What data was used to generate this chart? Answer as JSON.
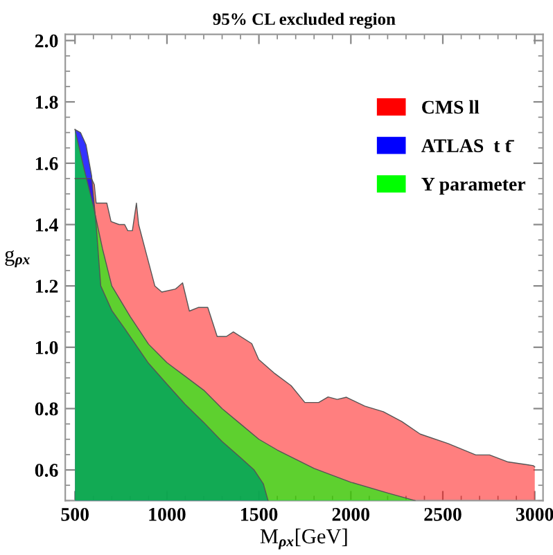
{
  "chart_data": {
    "type": "area",
    "title": "95% CL excluded region",
    "xlabel": "M$_{ρx}$[GeV]",
    "ylabel": "g$_{ρx}$",
    "xlim": [
      447,
      3045
    ],
    "ylim": [
      0.5,
      2.02
    ],
    "xticks": [
      500,
      1000,
      1500,
      2000,
      2500,
      3000
    ],
    "yticks": [
      {
        "value": 0.6,
        "label": "0.6"
      },
      {
        "value": 0.8,
        "label": "0.8"
      },
      {
        "value": 1,
        "label": "1.0"
      },
      {
        "value": 1.2,
        "label": "1.2"
      },
      {
        "value": 1.4,
        "label": "1.4"
      },
      {
        "value": 1.6,
        "label": "1.6"
      },
      {
        "value": 1.8,
        "label": "1.8"
      },
      {
        "value": 2,
        "label": "2.0"
      }
    ],
    "legend": "top right",
    "grid": false,
    "series": [
      {
        "name": "CMS ll",
        "color": "#ff0000",
        "x": [
          500,
          570,
          590,
          605,
          615,
          640,
          673,
          696,
          740,
          770,
          787,
          812,
          834,
          846,
          890,
          934,
          972,
          1047,
          1085,
          1122,
          1172,
          1222,
          1273,
          1323,
          1361,
          1461,
          1499,
          1587,
          1675,
          1750,
          1825,
          1876,
          1926,
          1976,
          2076,
          2176,
          2277,
          2377,
          2528,
          2679,
          2754,
          2855,
          2993,
          3000
        ],
        "values": [
          1.55,
          1.55,
          1.55,
          1.53,
          1.47,
          1.47,
          1.47,
          1.41,
          1.4,
          1.4,
          1.38,
          1.38,
          1.47,
          1.4,
          1.3,
          1.2,
          1.18,
          1.19,
          1.21,
          1.118,
          1.13,
          1.13,
          1.035,
          1.035,
          1.05,
          1.012,
          0.96,
          0.914,
          0.875,
          0.82,
          0.82,
          0.838,
          0.83,
          0.837,
          0.808,
          0.79,
          0.758,
          0.717,
          0.686,
          0.649,
          0.649,
          0.626,
          0.614,
          0.61
        ]
      },
      {
        "name": "ATLAS  t t̄",
        "color": "#0000ff",
        "x": [
          500,
          530,
          560,
          590,
          615,
          640,
          700,
          771,
          897,
          1000,
          1097,
          1200,
          1298,
          1400,
          1474,
          1524,
          1550
        ],
        "values": [
          1.71,
          1.7,
          1.66,
          1.56,
          1.4,
          1.2,
          1.12,
          1.06,
          0.95,
          0.88,
          0.815,
          0.755,
          0.694,
          0.64,
          0.6,
          0.555,
          0.5
        ]
      },
      {
        "name": "Y parameter",
        "color": "#00ff00",
        "x": [
          500,
          550,
          600,
          650,
          700,
          800,
          900,
          1000,
          1100,
          1200,
          1300,
          1400,
          1500,
          1600,
          1800,
          2000,
          2200,
          2350
        ],
        "values": [
          1.71,
          1.58,
          1.46,
          1.32,
          1.2,
          1.1,
          1.01,
          0.95,
          0.905,
          0.86,
          0.8,
          0.75,
          0.7,
          0.665,
          0.605,
          0.56,
          0.525,
          0.5
        ]
      }
    ]
  }
}
